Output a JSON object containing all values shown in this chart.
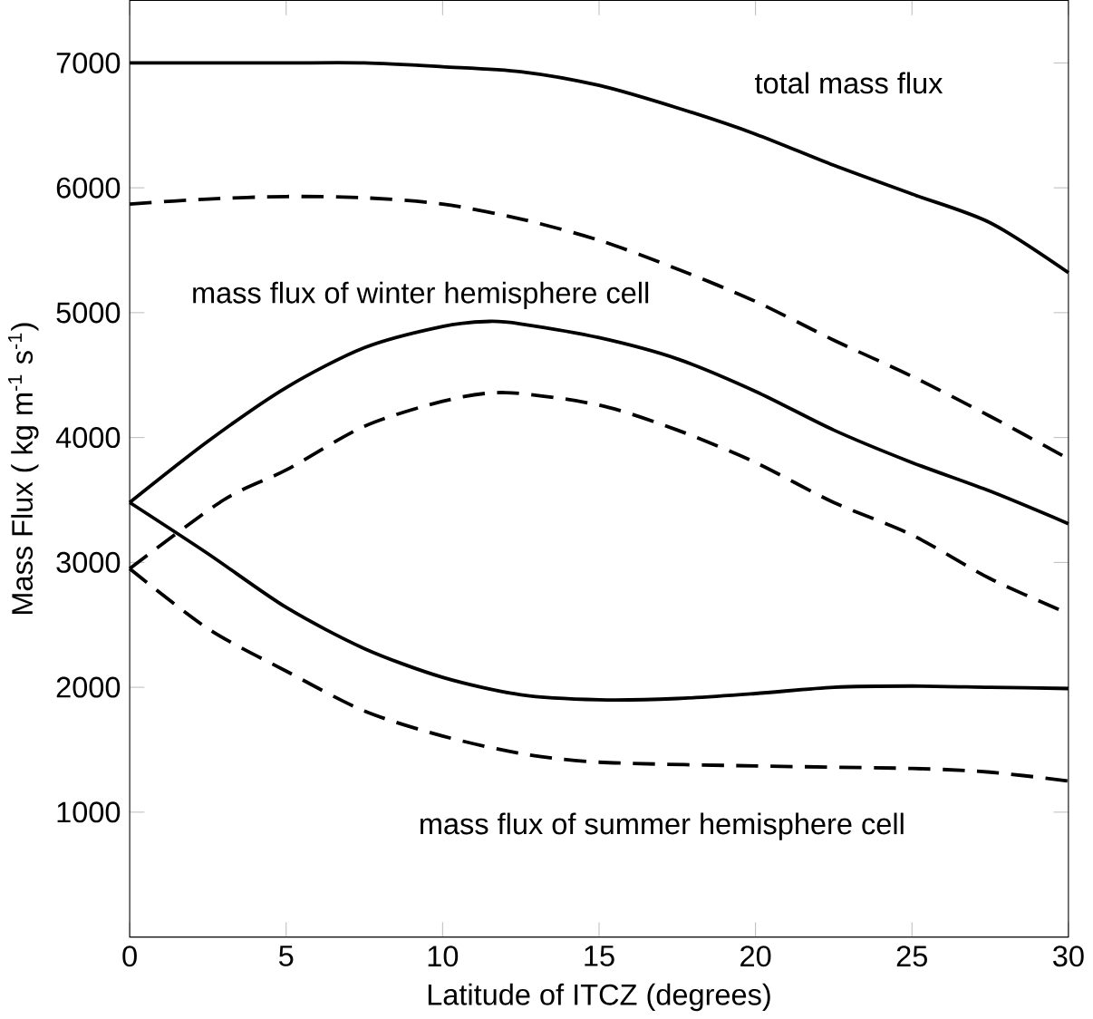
{
  "chart_data": {
    "type": "line",
    "xlabel": "Latitude of ITCZ  (degrees)",
    "ylabel": "Mass Flux ( kg m$^{-1}$ s$^{-1}$)",
    "xlim": [
      0,
      30
    ],
    "xticks": [
      0,
      5,
      10,
      15,
      20,
      25,
      30
    ],
    "ylim": [
      0,
      7500
    ],
    "yticks": [
      1000,
      2000,
      3000,
      4000,
      5000,
      6000,
      7000
    ],
    "grid": false,
    "series": [
      {
        "color": "#000000",
        "line_style": "solid",
        "x": [
          0,
          2.5,
          5,
          7.5,
          10,
          12.5,
          15,
          17.5,
          20,
          22.5,
          25,
          27.5,
          30
        ],
        "values": [
          7000,
          7000,
          7000,
          7000,
          6970,
          6930,
          6820,
          6640,
          6430,
          6180,
          5950,
          5720,
          5320
        ]
      },
      {
        "color": "#000000",
        "line_style": "dashed",
        "x": [
          0,
          2.5,
          5,
          7.5,
          10,
          12.5,
          15,
          17.5,
          20,
          22.5,
          25,
          27.5,
          30
        ],
        "values": [
          5870,
          5910,
          5930,
          5920,
          5870,
          5750,
          5580,
          5350,
          5090,
          4780,
          4490,
          4170,
          3830
        ]
      },
      {
        "color": "#000000",
        "line_style": "solid",
        "x": [
          0,
          2.5,
          5,
          7.5,
          10,
          11.5,
          12.5,
          15,
          17.5,
          20,
          22.5,
          25,
          27.5,
          30
        ],
        "values": [
          3480,
          3970,
          4400,
          4720,
          4890,
          4930,
          4910,
          4800,
          4630,
          4370,
          4060,
          3800,
          3570,
          3310
        ]
      },
      {
        "color": "#000000",
        "line_style": "dashed",
        "x": [
          0,
          3,
          5,
          7.5,
          10,
          12,
          15,
          17.5,
          20,
          22.5,
          25,
          27.5,
          30
        ],
        "values": [
          2950,
          3500,
          3740,
          4090,
          4290,
          4360,
          4260,
          4060,
          3800,
          3480,
          3220,
          2870,
          2590
        ]
      },
      {
        "color": "#000000",
        "line_style": "solid",
        "x": [
          0,
          2.5,
          5,
          7.5,
          10,
          12.5,
          15,
          17.5,
          20,
          22.5,
          25,
          27.5,
          30
        ],
        "values": [
          3480,
          3070,
          2640,
          2310,
          2080,
          1940,
          1900,
          1910,
          1950,
          2000,
          2010,
          2000,
          1990
        ]
      },
      {
        "color": "#000000",
        "line_style": "dashed",
        "x": [
          0,
          2.5,
          5,
          7.5,
          10,
          12.5,
          15,
          20,
          25,
          27.5,
          30
        ],
        "values": [
          2950,
          2470,
          2130,
          1810,
          1610,
          1470,
          1400,
          1370,
          1350,
          1320,
          1250
        ]
      }
    ],
    "annotations": [
      "total mass flux",
      "mass flux of winter hemisphere cell",
      "mass flux of summer hemisphere cell"
    ]
  }
}
